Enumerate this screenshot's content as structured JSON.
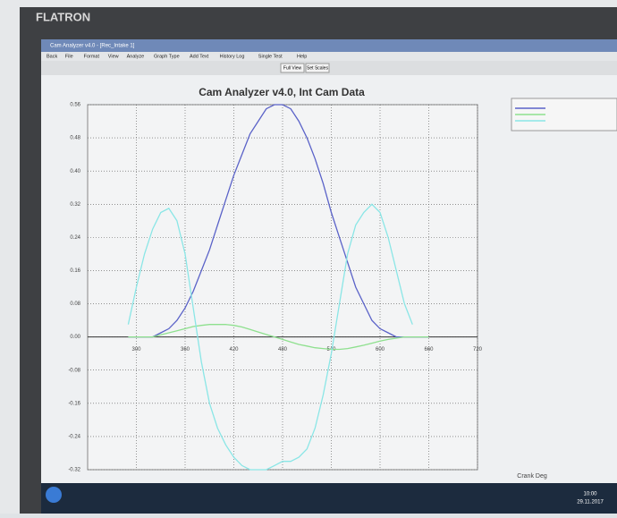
{
  "ui": {
    "monitor_brand": "FLATRON",
    "window_title": "Cam Analyzer v4.0 - [Rec_Intake 1]",
    "menu": [
      "Back",
      "File",
      "Format",
      "View",
      "Analyze",
      "Graph Type",
      "Add Text",
      "History Log",
      "Single Test",
      "Help"
    ],
    "buttons": [
      "Full View",
      "Set Scales"
    ],
    "clock_time": "10:00",
    "clock_date": "29.11.2017"
  },
  "chart_data": {
    "type": "line",
    "title": "Cam Analyzer v4.0,  Int Cam Data",
    "x_label": "Crank Deg",
    "x": [
      290,
      300,
      310,
      320,
      330,
      340,
      350,
      360,
      370,
      380,
      390,
      400,
      410,
      420,
      430,
      440,
      450,
      460,
      470,
      480,
      490,
      500,
      510,
      520,
      530,
      540,
      550,
      560,
      570,
      580,
      590,
      600,
      610,
      620,
      630,
      640,
      650,
      660
    ],
    "series": [
      {
        "color": "#5a62c8",
        "values": [
          0,
          0,
          0,
          0,
          0.01,
          0.02,
          0.04,
          0.07,
          0.11,
          0.16,
          0.21,
          0.27,
          0.33,
          0.39,
          0.44,
          0.49,
          0.52,
          0.55,
          0.56,
          0.56,
          0.55,
          0.52,
          0.48,
          0.43,
          0.37,
          0.3,
          0.24,
          0.18,
          0.12,
          0.08,
          0.04,
          0.02,
          0.01,
          0,
          0,
          0,
          0,
          0
        ]
      },
      {
        "color": "#8ee08e",
        "values": [
          0,
          0,
          0,
          0,
          0.005,
          0.01,
          0.015,
          0.02,
          0.025,
          0.028,
          0.03,
          0.03,
          0.03,
          0.028,
          0.024,
          0.018,
          0.012,
          0.006,
          0,
          -0.006,
          -0.012,
          -0.018,
          -0.022,
          -0.026,
          -0.028,
          -0.03,
          -0.03,
          -0.028,
          -0.024,
          -0.02,
          -0.015,
          -0.01,
          -0.006,
          -0.003,
          0,
          0,
          0,
          0
        ]
      },
      {
        "color": "#8ae6e6",
        "values": [
          0.03,
          0.12,
          0.2,
          0.26,
          0.3,
          0.31,
          0.28,
          0.2,
          0.07,
          -0.06,
          -0.16,
          -0.22,
          -0.26,
          -0.29,
          -0.31,
          -0.32,
          -0.32,
          -0.32,
          -0.31,
          -0.3,
          -0.3,
          -0.29,
          -0.27,
          -0.22,
          -0.14,
          -0.04,
          0.08,
          0.2,
          0.27,
          0.3,
          0.32,
          0.3,
          0.24,
          0.16,
          0.08,
          0.03,
          null,
          null
        ]
      }
    ],
    "xlim": [
      240,
      720
    ],
    "xticks": [
      300,
      360,
      420,
      480,
      540,
      600,
      660,
      720
    ],
    "ylim": [
      -0.32,
      0.56
    ],
    "yticks": [
      0.56,
      0.48,
      {
        "value": 0.4,
        "label": "0.40"
      },
      0.32,
      0.24,
      0.16,
      0.08,
      {
        "value": 0,
        "label": "0.00"
      },
      -0.08,
      -0.16,
      -0.24,
      -0.32
    ],
    "grid": true
  }
}
